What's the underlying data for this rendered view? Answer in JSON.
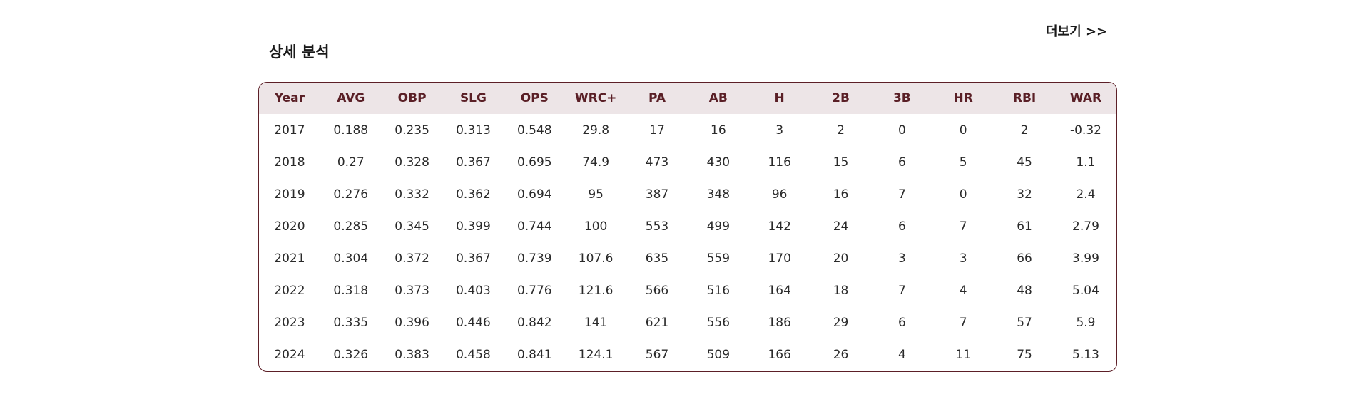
{
  "more_link": {
    "label": "더보기 >>"
  },
  "section": {
    "title": "상세 분석"
  },
  "stats_table": {
    "columns": [
      "Year",
      "AVG",
      "OBP",
      "SLG",
      "OPS",
      "WRC+",
      "PA",
      "AB",
      "H",
      "2B",
      "3B",
      "HR",
      "RBI",
      "WAR"
    ],
    "rows": [
      [
        "2017",
        "0.188",
        "0.235",
        "0.313",
        "0.548",
        "29.8",
        "17",
        "16",
        "3",
        "2",
        "0",
        "0",
        "2",
        "-0.32"
      ],
      [
        "2018",
        "0.27",
        "0.328",
        "0.367",
        "0.695",
        "74.9",
        "473",
        "430",
        "116",
        "15",
        "6",
        "5",
        "45",
        "1.1"
      ],
      [
        "2019",
        "0.276",
        "0.332",
        "0.362",
        "0.694",
        "95",
        "387",
        "348",
        "96",
        "16",
        "7",
        "0",
        "32",
        "2.4"
      ],
      [
        "2020",
        "0.285",
        "0.345",
        "0.399",
        "0.744",
        "100",
        "553",
        "499",
        "142",
        "24",
        "6",
        "7",
        "61",
        "2.79"
      ],
      [
        "2021",
        "0.304",
        "0.372",
        "0.367",
        "0.739",
        "107.6",
        "635",
        "559",
        "170",
        "20",
        "3",
        "3",
        "66",
        "3.99"
      ],
      [
        "2022",
        "0.318",
        "0.373",
        "0.403",
        "0.776",
        "121.6",
        "566",
        "516",
        "164",
        "18",
        "7",
        "4",
        "48",
        "5.04"
      ],
      [
        "2023",
        "0.335",
        "0.396",
        "0.446",
        "0.842",
        "141",
        "621",
        "556",
        "186",
        "29",
        "6",
        "7",
        "57",
        "5.9"
      ],
      [
        "2024",
        "0.326",
        "0.383",
        "0.458",
        "0.841",
        "124.1",
        "567",
        "509",
        "166",
        "26",
        "4",
        "11",
        "75",
        "5.13"
      ]
    ]
  },
  "colors": {
    "accent": "#5c1f27",
    "header_bg": "#ede5e7"
  }
}
